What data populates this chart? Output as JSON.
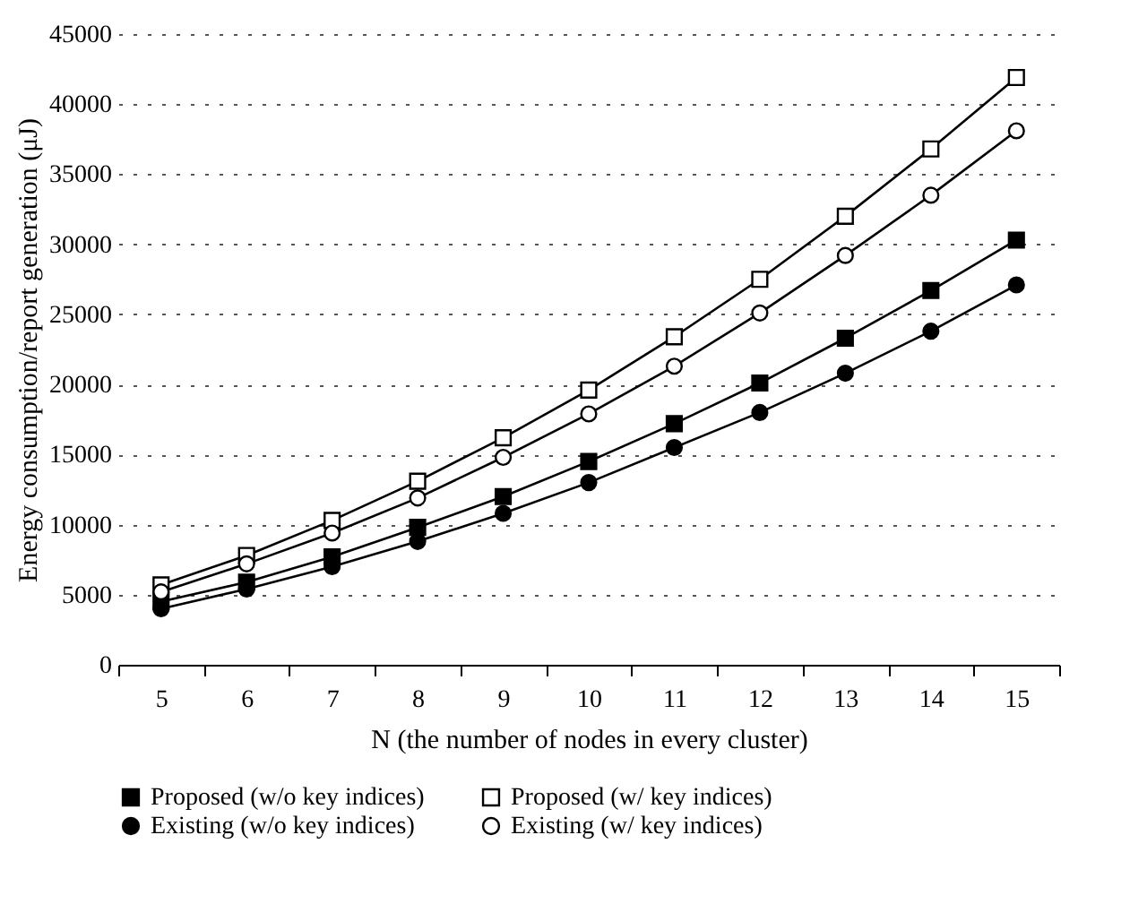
{
  "chart_data": {
    "type": "line",
    "xlabel": "N (the number of nodes in every cluster)",
    "ylabel": "Energy consumption/report generation (μJ)",
    "categories": [
      "5",
      "6",
      "7",
      "8",
      "9",
      "10",
      "11",
      "12",
      "13",
      "14",
      "15"
    ],
    "series": [
      {
        "name": "Proposed (w/o key indices)",
        "color": "#000000",
        "marker": "square",
        "values": [
          4500,
          5900,
          7700,
          9800,
          12000,
          14500,
          17200,
          20100,
          23300,
          26700,
          30300
        ]
      },
      {
        "name": "Proposed (w/ key indices)",
        "color": "#ffffff",
        "marker": "square",
        "values": [
          5700,
          7800,
          10300,
          13100,
          16200,
          19600,
          23400,
          27500,
          32000,
          36800,
          41900
        ]
      },
      {
        "name": "Existing (w/o key indices)",
        "color": "#000000",
        "marker": "circle",
        "values": [
          4000,
          5400,
          7000,
          8800,
          10800,
          13000,
          15500,
          18000,
          20800,
          23800,
          27100
        ]
      },
      {
        "name": "Existing (w/ key indices)",
        "color": "#ffffff",
        "marker": "circle",
        "values": [
          5200,
          7200,
          9400,
          11900,
          14800,
          17900,
          21300,
          25100,
          29200,
          33500,
          38100
        ]
      }
    ],
    "ylim": [
      0,
      45000
    ],
    "yticks": [
      0,
      5000,
      10000,
      15000,
      20000,
      25000,
      30000,
      35000,
      40000,
      45000
    ],
    "grid": "y",
    "legend": "bottom",
    "line_style": "solid"
  }
}
